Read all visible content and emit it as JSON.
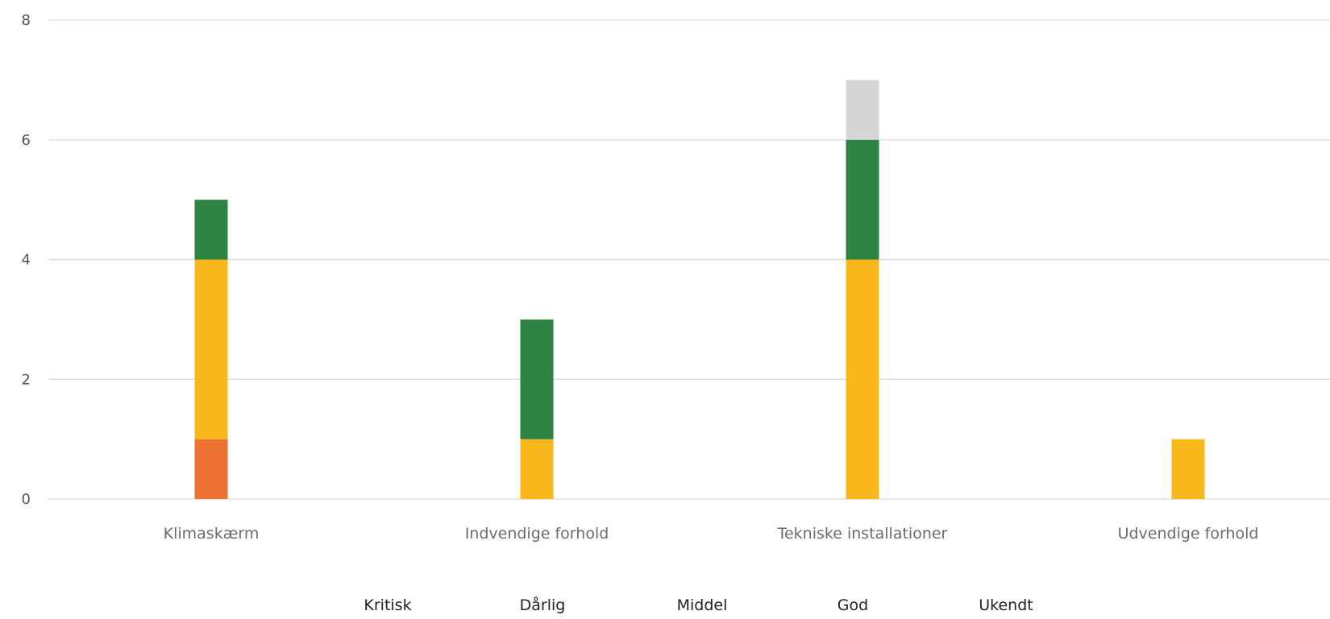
{
  "chart_data": {
    "type": "bar",
    "stacked": true,
    "title": "",
    "xlabel": "",
    "ylabel": "",
    "categories": [
      "Klimaskærm",
      "Indvendige forhold",
      "Tekniske installationer",
      "Udvendige forhold"
    ],
    "ylim": [
      0,
      8
    ],
    "yticks": [
      0,
      2,
      4,
      6,
      8
    ],
    "grid": true,
    "legend_position": "bottom",
    "series": [
      {
        "name": "Kritisk",
        "color": "#EE7134",
        "values": [
          1,
          0,
          0,
          0
        ]
      },
      {
        "name": "Dårlig",
        "color": "#FBB81D",
        "values": [
          3,
          1,
          4,
          1
        ]
      },
      {
        "name": "Middel",
        "color": "#2E8542",
        "values": [
          1,
          2,
          2,
          0
        ]
      },
      {
        "name": "God",
        "color": "#2E8542",
        "values": [
          0,
          0,
          0,
          0
        ]
      },
      {
        "name": "Ukendt",
        "color": "#D5D5D5",
        "values": [
          0,
          0,
          1,
          0
        ]
      }
    ],
    "legend": [
      "Kritisk",
      "Dårlig",
      "Middel",
      "God",
      "Ukendt"
    ]
  },
  "colors": {
    "gridline": "#D9D9D9",
    "axis_text": "#555555",
    "category_text": "#6B6B6B",
    "legend_text": "#222222"
  }
}
